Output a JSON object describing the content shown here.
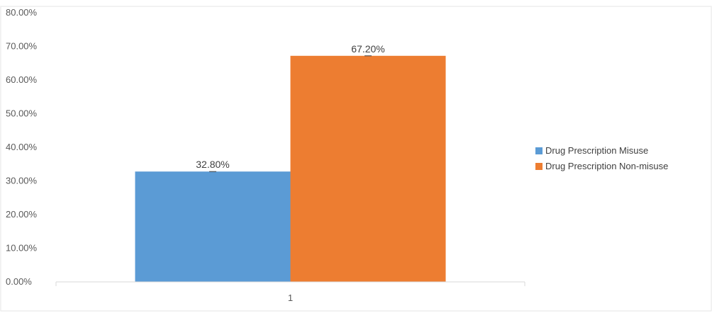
{
  "chart_data": {
    "type": "bar",
    "title": "",
    "xlabel": "",
    "ylabel": "",
    "categories": [
      "1"
    ],
    "series": [
      {
        "name": "Drug Prescription Misuse",
        "values": [
          32.8
        ],
        "label": "32.80%",
        "color": "#5b9bd5"
      },
      {
        "name": "Drug Prescription Non-misuse",
        "values": [
          67.2
        ],
        "label": "67.20%",
        "color": "#ed7d31"
      }
    ],
    "ylim": [
      0,
      80
    ],
    "y_ticks": [
      {
        "value": 0,
        "label": "0.00%"
      },
      {
        "value": 10,
        "label": "10.00%"
      },
      {
        "value": 20,
        "label": "20.00%"
      },
      {
        "value": 30,
        "label": "30.00%"
      },
      {
        "value": 40,
        "label": "40.00%"
      },
      {
        "value": 50,
        "label": "50.00%"
      },
      {
        "value": 60,
        "label": "60.00%"
      },
      {
        "value": 70,
        "label": "70.00%"
      },
      {
        "value": 80,
        "label": "80.00%"
      }
    ],
    "grid": false,
    "legend_position": "right"
  }
}
